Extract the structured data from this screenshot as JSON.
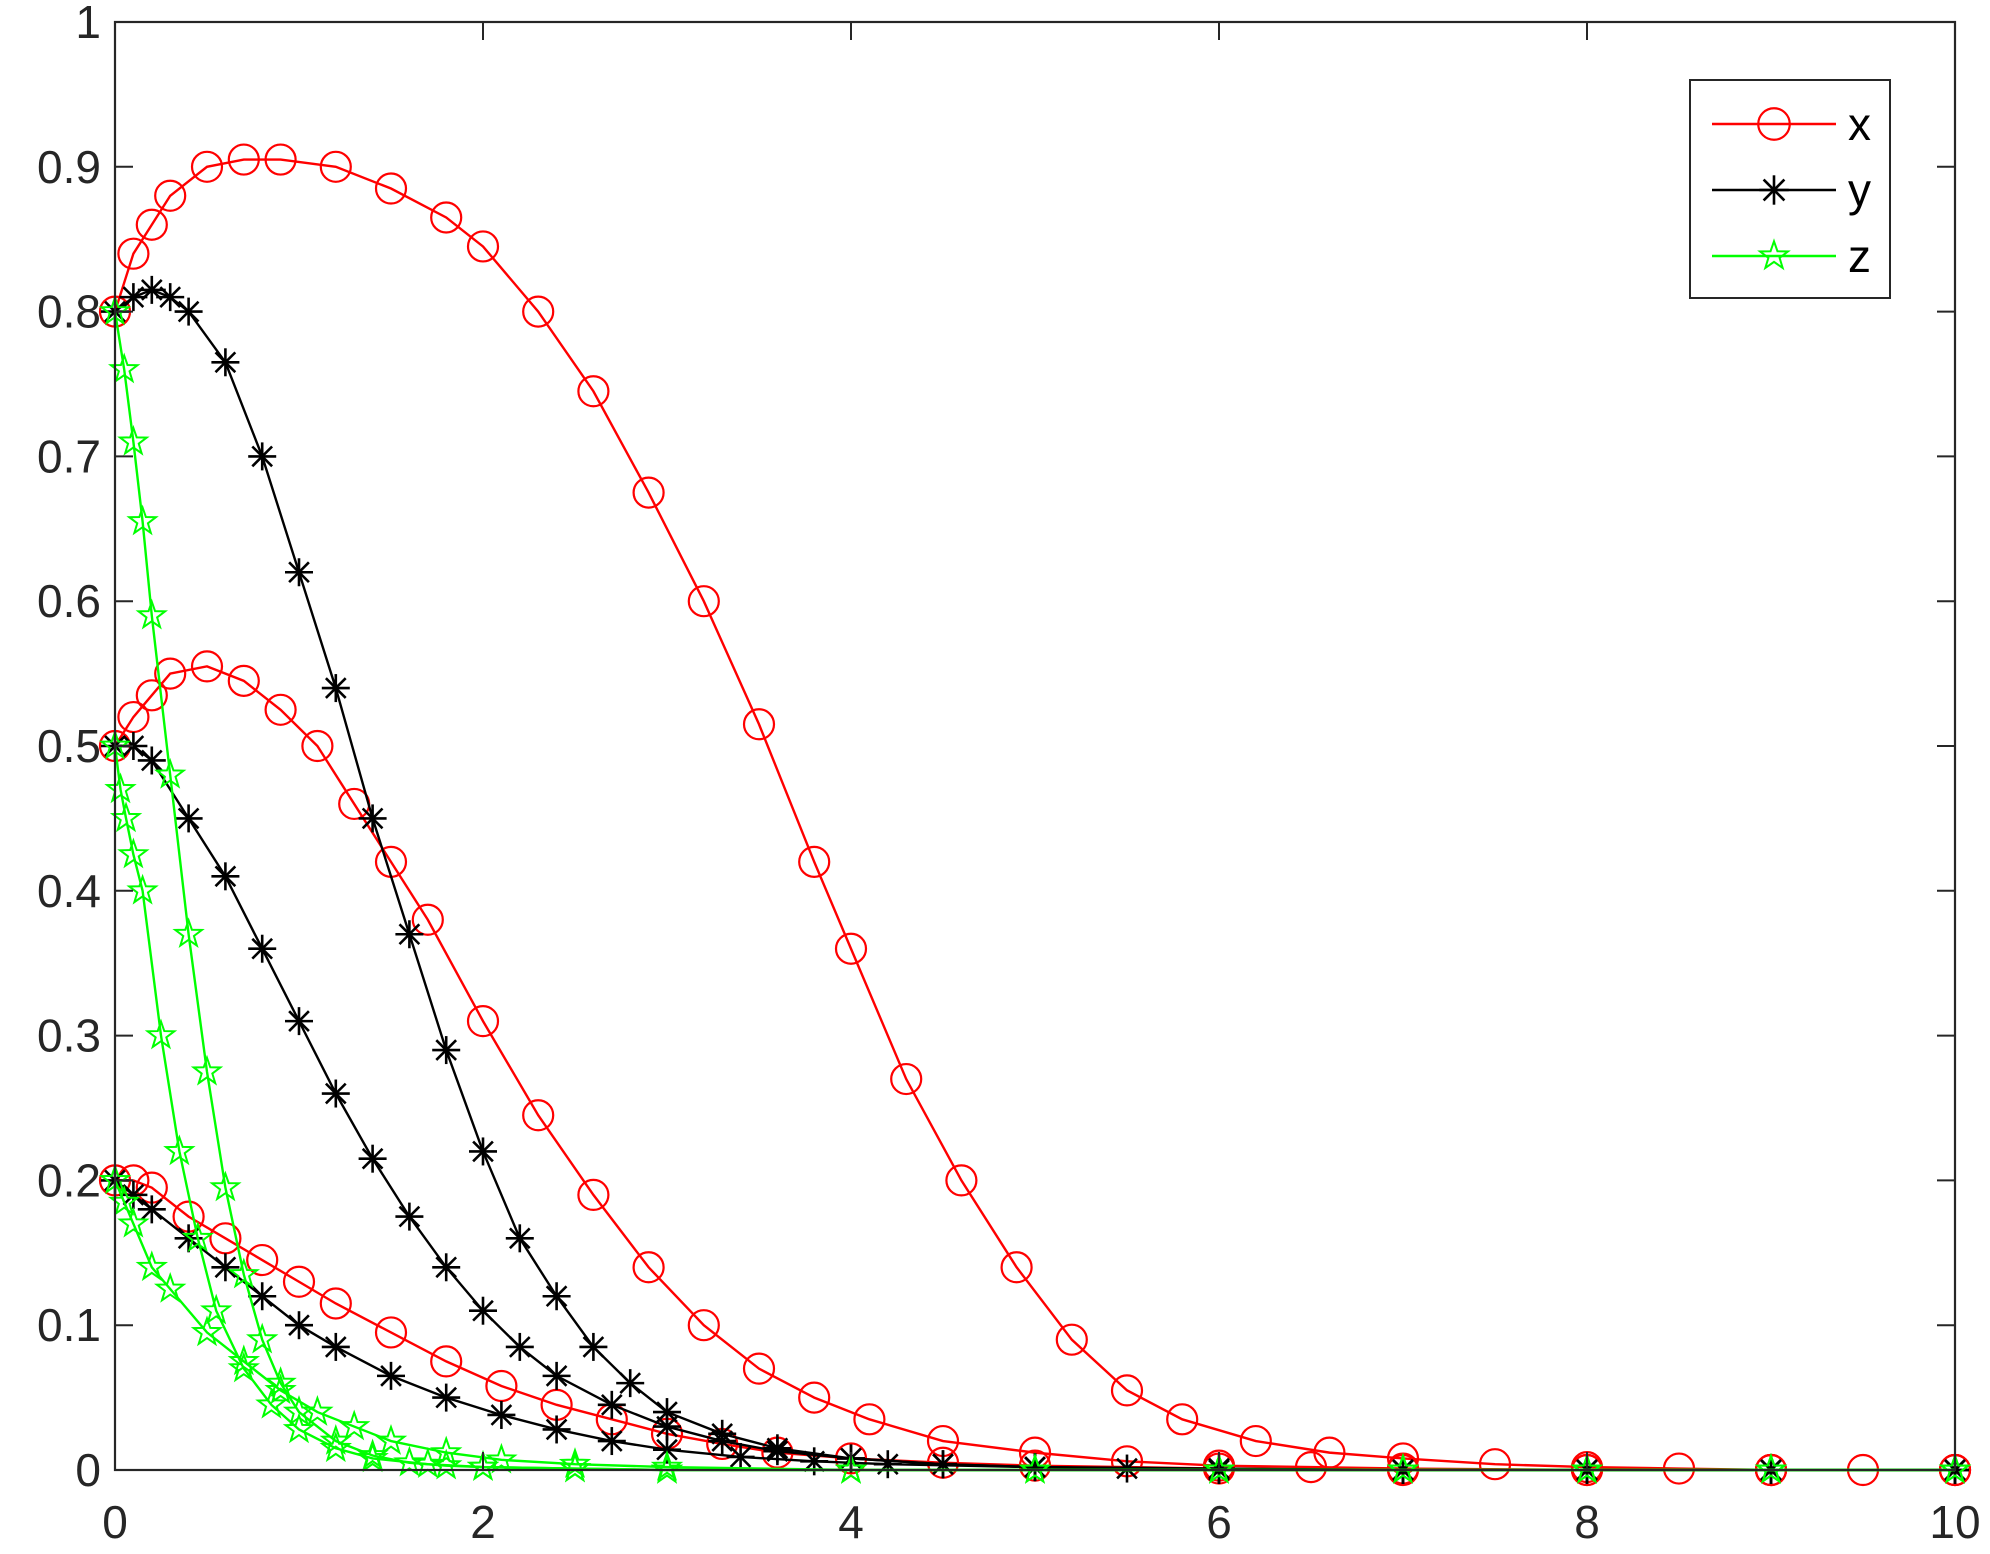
{
  "chart_data": {
    "type": "line",
    "title": "",
    "xlabel": "",
    "ylabel": "",
    "xlim": [
      0,
      10
    ],
    "ylim": [
      0,
      1
    ],
    "xticks": [
      "0",
      "2",
      "4",
      "6",
      "8",
      "10"
    ],
    "yticks": [
      "0",
      "0.1",
      "0.2",
      "0.3",
      "0.4",
      "0.5",
      "0.6",
      "0.7",
      "0.8",
      "0.9",
      "1"
    ],
    "grid": false,
    "legend_position": "top-right",
    "legend": [
      {
        "label": "x",
        "color": "#ff0000",
        "marker": "circle"
      },
      {
        "label": "y",
        "color": "#000000",
        "marker": "asterisk"
      },
      {
        "label": "z",
        "color": "#00ff00",
        "marker": "star"
      }
    ],
    "series": [
      {
        "name": "x",
        "group": "x0=0.8",
        "color": "#ff0000",
        "marker": "circle",
        "x": [
          0,
          0.1,
          0.2,
          0.3,
          0.5,
          0.7,
          0.9,
          1.2,
          1.5,
          1.8,
          2.0,
          2.3,
          2.6,
          2.9,
          3.2,
          3.5,
          3.8,
          4.0,
          4.3,
          4.6,
          4.9,
          5.2,
          5.5,
          5.8,
          6.2,
          6.6,
          7.0,
          7.5,
          8.0,
          8.5,
          9.0,
          9.5,
          10
        ],
        "y": [
          0.8,
          0.84,
          0.86,
          0.88,
          0.9,
          0.905,
          0.905,
          0.9,
          0.885,
          0.865,
          0.845,
          0.8,
          0.745,
          0.675,
          0.6,
          0.515,
          0.42,
          0.36,
          0.27,
          0.2,
          0.14,
          0.09,
          0.055,
          0.035,
          0.02,
          0.012,
          0.008,
          0.004,
          0.002,
          0.001,
          0.0,
          0.0,
          0.0
        ]
      },
      {
        "name": "x",
        "group": "x0=0.5",
        "color": "#ff0000",
        "marker": "circle",
        "x": [
          0,
          0.1,
          0.2,
          0.3,
          0.5,
          0.7,
          0.9,
          1.1,
          1.3,
          1.5,
          1.7,
          2.0,
          2.3,
          2.6,
          2.9,
          3.2,
          3.5,
          3.8,
          4.1,
          4.5,
          5.0,
          5.5,
          6.0,
          6.5,
          7.0,
          8.0,
          9.0,
          10
        ],
        "y": [
          0.5,
          0.52,
          0.535,
          0.55,
          0.555,
          0.545,
          0.525,
          0.5,
          0.46,
          0.42,
          0.38,
          0.31,
          0.245,
          0.19,
          0.14,
          0.1,
          0.07,
          0.05,
          0.035,
          0.02,
          0.012,
          0.006,
          0.003,
          0.002,
          0.001,
          0.0,
          0.0,
          0.0
        ]
      },
      {
        "name": "x",
        "group": "x0=0.2",
        "color": "#ff0000",
        "marker": "circle",
        "x": [
          0,
          0.1,
          0.2,
          0.4,
          0.6,
          0.8,
          1.0,
          1.2,
          1.5,
          1.8,
          2.1,
          2.4,
          2.7,
          3.0,
          3.3,
          3.6,
          4.0,
          4.5,
          5.0,
          6.0,
          7.0,
          8.0,
          9.0,
          10
        ],
        "y": [
          0.2,
          0.2,
          0.195,
          0.175,
          0.16,
          0.145,
          0.13,
          0.115,
          0.095,
          0.075,
          0.058,
          0.045,
          0.035,
          0.025,
          0.018,
          0.012,
          0.008,
          0.005,
          0.003,
          0.001,
          0.0,
          0.0,
          0.0,
          0.0
        ]
      },
      {
        "name": "y",
        "group": "y0=0.8",
        "color": "#000000",
        "marker": "asterisk",
        "x": [
          0,
          0.1,
          0.2,
          0.3,
          0.4,
          0.6,
          0.8,
          1.0,
          1.2,
          1.4,
          1.6,
          1.8,
          2.0,
          2.2,
          2.4,
          2.6,
          2.8,
          3.0,
          3.3,
          3.6,
          4.0,
          4.5,
          5.0,
          5.5,
          6.0,
          7.0,
          8.0,
          9.0,
          10
        ],
        "y": [
          0.8,
          0.81,
          0.815,
          0.81,
          0.8,
          0.765,
          0.7,
          0.62,
          0.54,
          0.45,
          0.37,
          0.29,
          0.22,
          0.16,
          0.12,
          0.085,
          0.06,
          0.04,
          0.025,
          0.015,
          0.008,
          0.004,
          0.002,
          0.001,
          0.0,
          0.0,
          0.0,
          0.0,
          0.0
        ]
      },
      {
        "name": "y",
        "group": "y0=0.5",
        "color": "#000000",
        "marker": "asterisk",
        "x": [
          0,
          0.1,
          0.2,
          0.4,
          0.6,
          0.8,
          1.0,
          1.2,
          1.4,
          1.6,
          1.8,
          2.0,
          2.2,
          2.4,
          2.7,
          3.0,
          3.3,
          3.6,
          4.0,
          4.5,
          5.0,
          6.0,
          7.0,
          8.0,
          9.0,
          10
        ],
        "y": [
          0.5,
          0.5,
          0.49,
          0.45,
          0.41,
          0.36,
          0.31,
          0.26,
          0.215,
          0.175,
          0.14,
          0.11,
          0.085,
          0.065,
          0.045,
          0.03,
          0.02,
          0.013,
          0.008,
          0.004,
          0.002,
          0.0,
          0.0,
          0.0,
          0.0,
          0.0
        ]
      },
      {
        "name": "y",
        "group": "y0=0.2",
        "color": "#000000",
        "marker": "asterisk",
        "x": [
          0,
          0.1,
          0.2,
          0.4,
          0.6,
          0.8,
          1.0,
          1.2,
          1.5,
          1.8,
          2.1,
          2.4,
          2.7,
          3.0,
          3.4,
          3.8,
          4.2,
          5.0,
          6.0,
          7.0,
          8.0,
          9.0,
          10
        ],
        "y": [
          0.2,
          0.19,
          0.18,
          0.16,
          0.14,
          0.12,
          0.1,
          0.085,
          0.065,
          0.05,
          0.038,
          0.028,
          0.02,
          0.014,
          0.009,
          0.006,
          0.004,
          0.002,
          0.001,
          0.0,
          0.0,
          0.0,
          0.0
        ]
      },
      {
        "name": "z",
        "group": "z0=0.8",
        "color": "#00ff00",
        "marker": "star",
        "x": [
          0,
          0.05,
          0.1,
          0.15,
          0.2,
          0.3,
          0.4,
          0.5,
          0.6,
          0.7,
          0.8,
          0.9,
          1.0,
          1.2,
          1.4,
          1.6,
          1.8,
          2.0,
          2.5,
          3.0,
          4.0,
          5.0,
          6.0,
          7.0,
          8.0,
          9.0,
          10
        ],
        "y": [
          0.8,
          0.76,
          0.71,
          0.655,
          0.59,
          0.48,
          0.37,
          0.275,
          0.195,
          0.135,
          0.09,
          0.06,
          0.04,
          0.02,
          0.01,
          0.005,
          0.003,
          0.002,
          0.001,
          0.0,
          0.0,
          0.0,
          0.0,
          0.0,
          0.0,
          0.0,
          0.0
        ]
      },
      {
        "name": "z",
        "group": "z0=0.5",
        "color": "#00ff00",
        "marker": "star",
        "x": [
          0,
          0.03,
          0.06,
          0.1,
          0.15,
          0.25,
          0.35,
          0.45,
          0.55,
          0.7,
          0.85,
          1.0,
          1.2,
          1.4,
          1.7,
          2.0,
          2.5,
          3.0,
          4.0,
          5.0,
          6.0,
          7.0,
          8.0,
          9.0,
          10
        ],
        "y": [
          0.5,
          0.47,
          0.45,
          0.425,
          0.4,
          0.3,
          0.22,
          0.16,
          0.11,
          0.07,
          0.045,
          0.028,
          0.015,
          0.008,
          0.004,
          0.002,
          0.001,
          0.0,
          0.0,
          0.0,
          0.0,
          0.0,
          0.0,
          0.0,
          0.0
        ]
      },
      {
        "name": "z",
        "group": "z0=0.2",
        "color": "#00ff00",
        "marker": "star",
        "x": [
          0,
          0.05,
          0.1,
          0.2,
          0.3,
          0.5,
          0.7,
          0.9,
          1.1,
          1.3,
          1.5,
          1.8,
          2.1,
          2.5,
          3.0,
          4.0,
          5.0,
          6.0,
          7.0,
          8.0,
          9.0,
          10
        ],
        "y": [
          0.2,
          0.185,
          0.17,
          0.14,
          0.125,
          0.095,
          0.075,
          0.055,
          0.04,
          0.03,
          0.02,
          0.012,
          0.007,
          0.004,
          0.002,
          0.0,
          0.0,
          0.0,
          0.0,
          0.0,
          0.0,
          0.0
        ]
      }
    ]
  }
}
